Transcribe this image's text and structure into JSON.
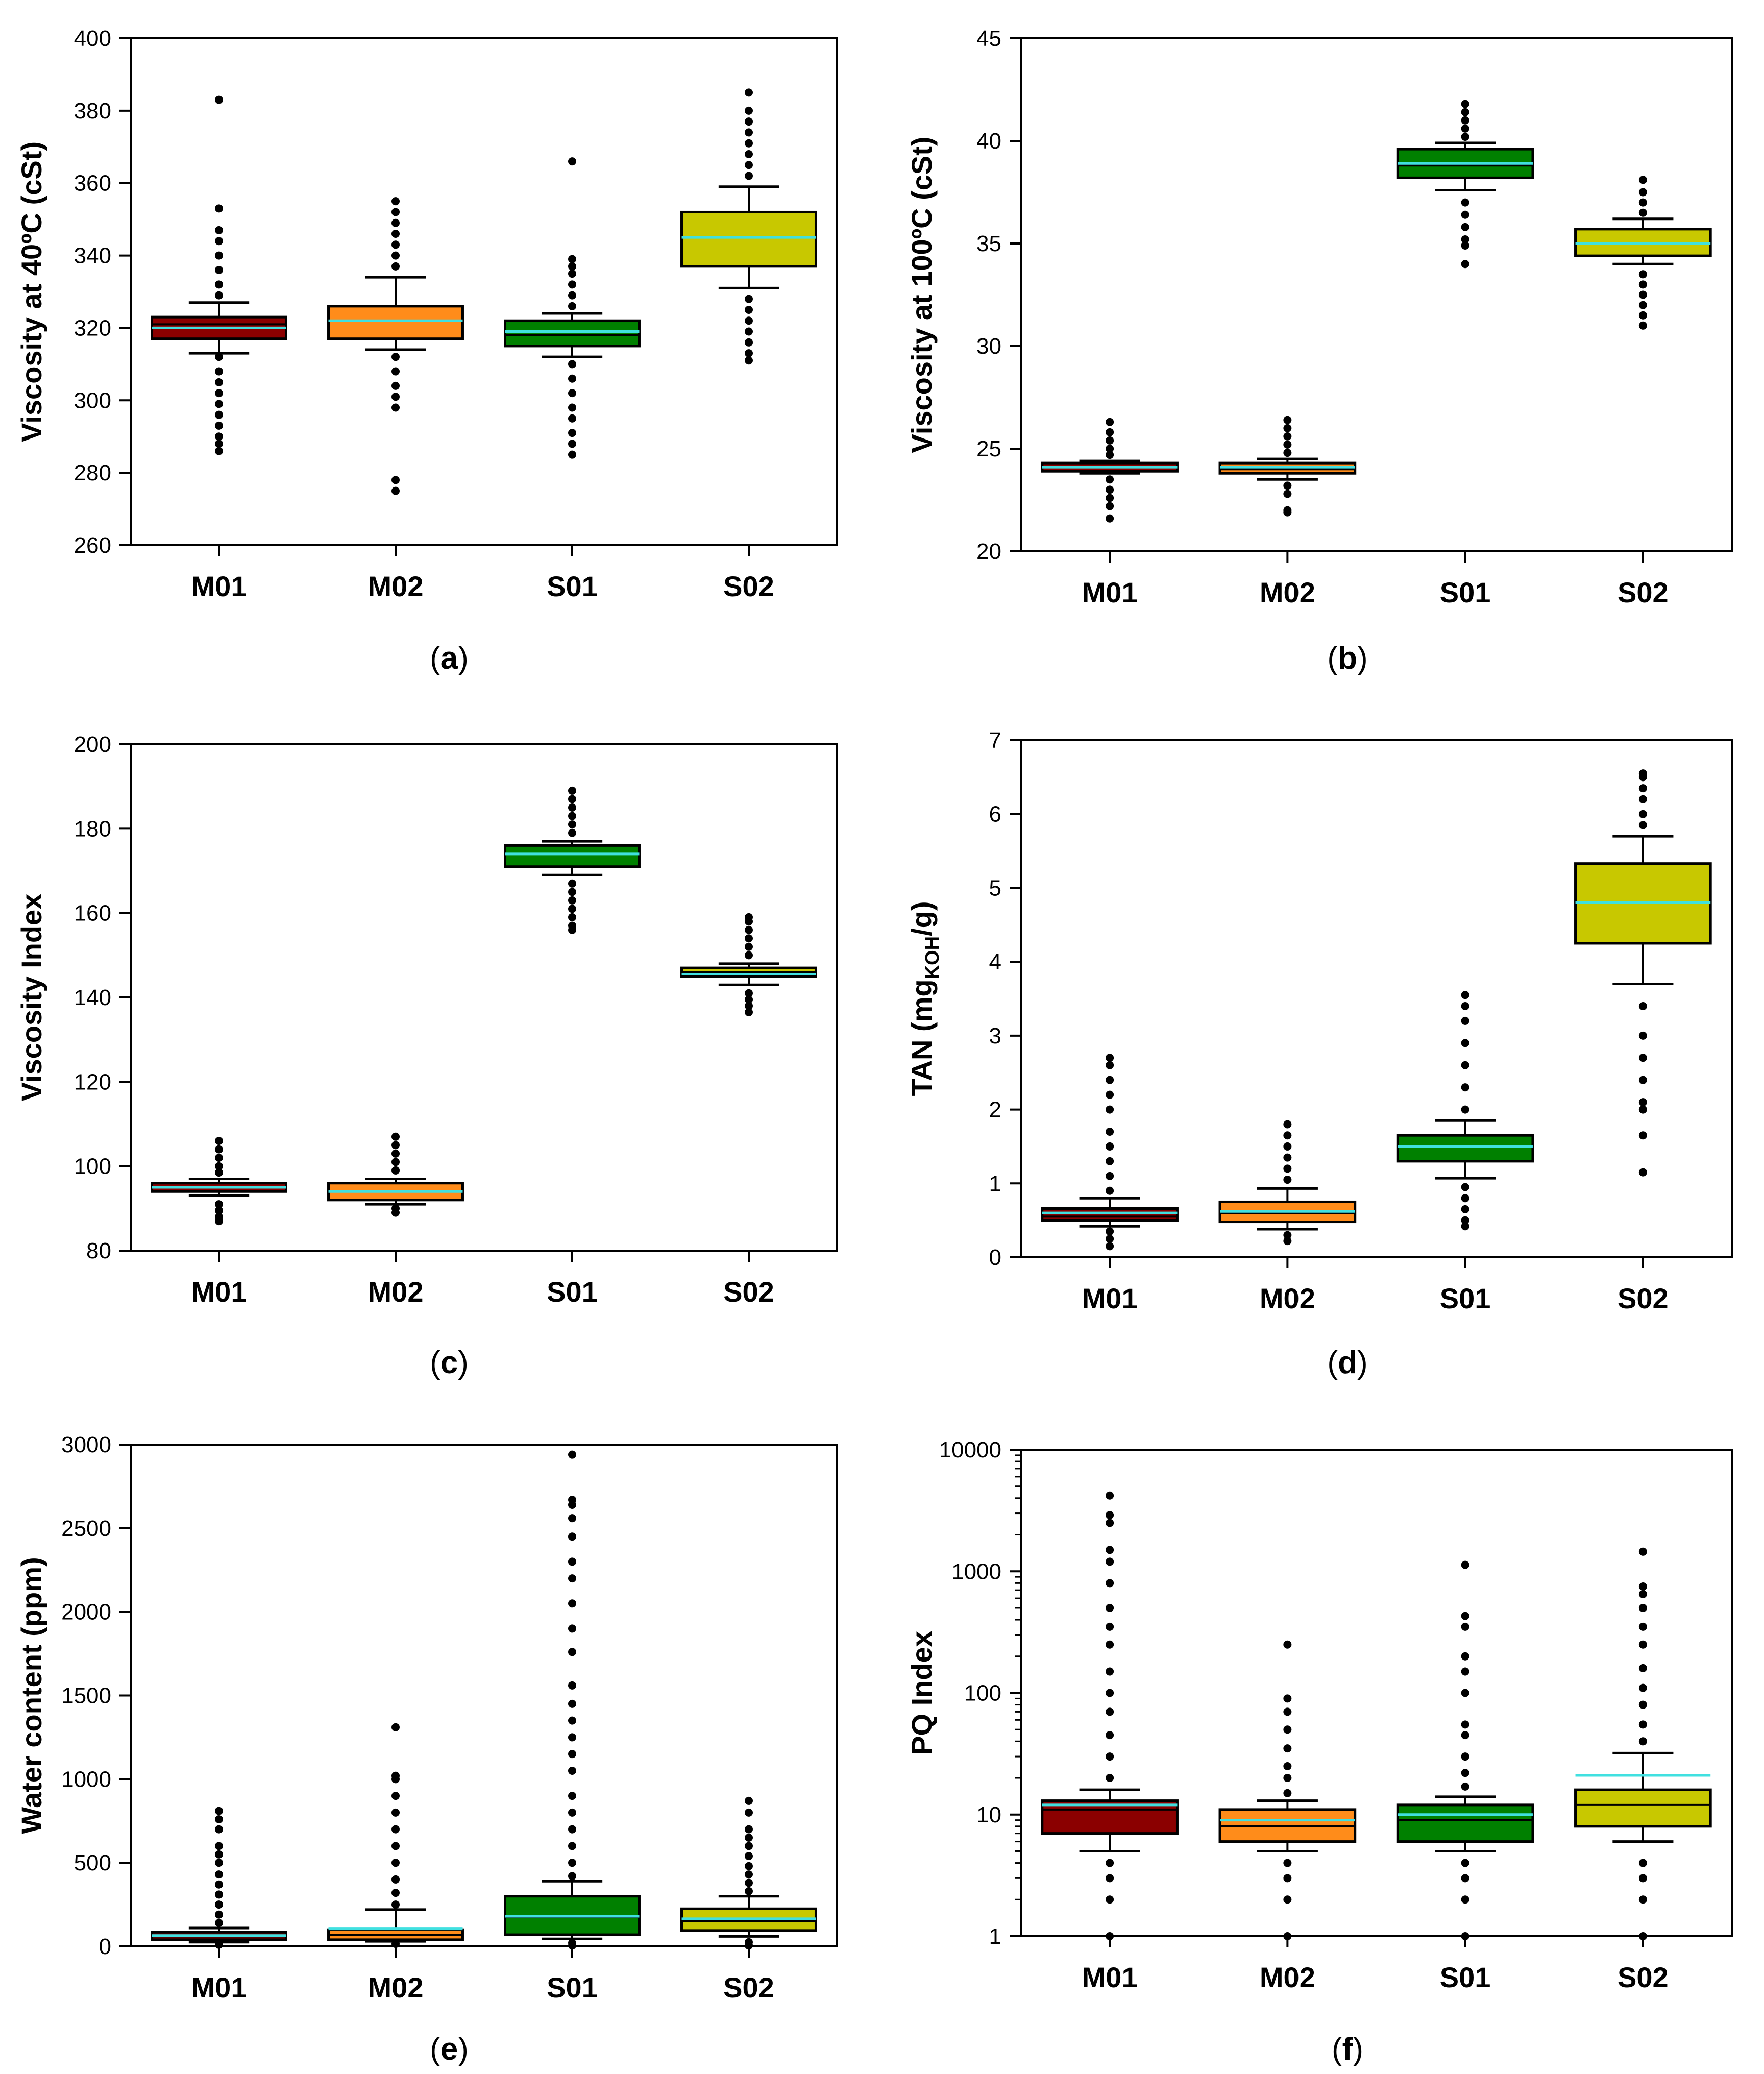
{
  "figure": {
    "colors": {
      "M01": "#8b0000",
      "M02": "#ff8c1a",
      "S01": "#008000",
      "S02": "#c8c800",
      "mean_line": "#40e0e0",
      "outlier": "#000000"
    }
  },
  "chart_data": [
    {
      "panel": "(a)",
      "letter": "a",
      "type": "box",
      "ylabel": "Viscosity at 40ºC (cSt)",
      "ylim": [
        260,
        400
      ],
      "yticks": [
        260,
        280,
        300,
        320,
        340,
        360,
        380,
        400
      ],
      "yscale": "linear",
      "categories": [
        "M01",
        "M02",
        "S01",
        "S02"
      ],
      "boxes": [
        {
          "name": "M01",
          "q1": 317,
          "median": 321,
          "q3": 323,
          "mean": 320,
          "whisker_low": 313,
          "whisker_high": 327,
          "outliers_low": [
            312,
            308,
            305,
            302,
            299,
            296,
            293,
            290,
            288,
            286
          ],
          "outliers_high": [
            329,
            332,
            336,
            340,
            344,
            347,
            353,
            383
          ]
        },
        {
          "name": "M02",
          "q1": 317,
          "median": 322,
          "q3": 326,
          "mean": 322,
          "whisker_low": 314,
          "whisker_high": 334,
          "outliers_low": [
            312,
            308,
            304,
            301,
            298,
            278,
            275
          ],
          "outliers_high": [
            337,
            340,
            343,
            346,
            349,
            352,
            355
          ]
        },
        {
          "name": "S01",
          "q1": 315,
          "median": 318,
          "q3": 322,
          "mean": 319,
          "whisker_low": 312,
          "whisker_high": 324,
          "outliers_low": [
            310,
            306,
            302,
            298,
            295,
            291,
            288,
            285
          ],
          "outliers_high": [
            326,
            329,
            332,
            335,
            337,
            339,
            366
          ]
        },
        {
          "name": "S02",
          "q1": 337,
          "median": 345,
          "q3": 352,
          "mean": 345,
          "whisker_low": 331,
          "whisker_high": 359,
          "outliers_low": [
            328,
            325,
            322,
            319,
            316,
            313,
            311
          ],
          "outliers_high": [
            362,
            365,
            368,
            371,
            374,
            377,
            380,
            385
          ]
        }
      ]
    },
    {
      "panel": "(b)",
      "letter": "b",
      "type": "box",
      "ylabel": "Viscosity at 100ºC (cSt)",
      "ylim": [
        20,
        45
      ],
      "yticks": [
        20,
        25,
        30,
        35,
        40,
        45
      ],
      "yscale": "linear",
      "categories": [
        "M01",
        "M02",
        "S01",
        "S02"
      ],
      "boxes": [
        {
          "name": "M01",
          "q1": 23.9,
          "median": 24.1,
          "q3": 24.3,
          "mean": 24.1,
          "whisker_low": 23.8,
          "whisker_high": 24.4,
          "outliers_low": [
            23.5,
            23.0,
            22.6,
            22.2,
            21.6
          ],
          "outliers_high": [
            24.7,
            25.0,
            25.4,
            25.8,
            26.3
          ]
        },
        {
          "name": "M02",
          "q1": 23.8,
          "median": 24.0,
          "q3": 24.3,
          "mean": 24.1,
          "whisker_low": 23.5,
          "whisker_high": 24.5,
          "outliers_low": [
            23.2,
            22.8,
            22.0,
            21.9
          ],
          "outliers_high": [
            24.8,
            25.2,
            25.6,
            26.0,
            26.4
          ]
        },
        {
          "name": "S01",
          "q1": 38.2,
          "median": 38.8,
          "q3": 39.6,
          "mean": 38.9,
          "whisker_low": 37.6,
          "whisker_high": 39.9,
          "outliers_low": [
            37.0,
            36.4,
            35.8,
            35.2,
            34.9,
            34.0
          ],
          "outliers_high": [
            40.2,
            40.6,
            41.0,
            41.4,
            41.8
          ]
        },
        {
          "name": "S02",
          "q1": 34.4,
          "median": 35.0,
          "q3": 35.7,
          "mean": 35.0,
          "whisker_low": 34.0,
          "whisker_high": 36.2,
          "outliers_low": [
            33.5,
            33.0,
            32.5,
            32.0,
            31.5,
            31.0
          ],
          "outliers_high": [
            36.5,
            37.0,
            37.5,
            38.1
          ]
        }
      ]
    },
    {
      "panel": "(c)",
      "letter": "c",
      "type": "box",
      "ylabel": "Viscosity Index",
      "ylim": [
        80,
        200
      ],
      "yticks": [
        80,
        100,
        120,
        140,
        160,
        180,
        200
      ],
      "yscale": "linear",
      "categories": [
        "M01",
        "M02",
        "S01",
        "S02"
      ],
      "boxes": [
        {
          "name": "M01",
          "q1": 94,
          "median": 95,
          "q3": 96,
          "mean": 95,
          "whisker_low": 93,
          "whisker_high": 97,
          "outliers_low": [
            91,
            89.5,
            88,
            87
          ],
          "outliers_high": [
            98.5,
            100,
            102,
            104,
            106
          ]
        },
        {
          "name": "M02",
          "q1": 92,
          "median": 94,
          "q3": 96,
          "mean": 94,
          "whisker_low": 91,
          "whisker_high": 97,
          "outliers_low": [
            90,
            89
          ],
          "outliers_high": [
            99,
            101,
            103,
            105,
            107
          ]
        },
        {
          "name": "S01",
          "q1": 171,
          "median": 174,
          "q3": 176,
          "mean": 174,
          "whisker_low": 169,
          "whisker_high": 177,
          "outliers_low": [
            167,
            165,
            163,
            161,
            159,
            157,
            156
          ],
          "outliers_high": [
            179,
            181,
            183,
            185,
            187,
            189
          ]
        },
        {
          "name": "S02",
          "q1": 145,
          "median": 146,
          "q3": 147,
          "mean": 145.5,
          "whisker_low": 143,
          "whisker_high": 148,
          "outliers_low": [
            141,
            139.5,
            138,
            136.5
          ],
          "outliers_high": [
            150,
            152,
            154,
            156,
            158,
            159
          ]
        }
      ]
    },
    {
      "panel": "(d)",
      "letter": "d",
      "type": "box",
      "ylabel": "TAN (mg",
      "ylabel_sub": "KOH",
      "ylabel_suffix": "/g)",
      "ylim": [
        0,
        7
      ],
      "yticks": [
        0,
        1,
        2,
        3,
        4,
        5,
        6,
        7
      ],
      "yscale": "linear",
      "categories": [
        "M01",
        "M02",
        "S01",
        "S02"
      ],
      "boxes": [
        {
          "name": "M01",
          "q1": 0.5,
          "median": 0.55,
          "q3": 0.66,
          "mean": 0.6,
          "whisker_low": 0.42,
          "whisker_high": 0.8,
          "outliers_low": [
            0.35,
            0.25,
            0.15
          ],
          "outliers_high": [
            0.9,
            1.1,
            1.3,
            1.5,
            1.7,
            2.0,
            2.2,
            2.4,
            2.6,
            2.7
          ]
        },
        {
          "name": "M02",
          "q1": 0.48,
          "median": 0.6,
          "q3": 0.75,
          "mean": 0.62,
          "whisker_low": 0.38,
          "whisker_high": 0.93,
          "outliers_low": [
            0.3,
            0.22
          ],
          "outliers_high": [
            1.05,
            1.2,
            1.35,
            1.5,
            1.65,
            1.8
          ]
        },
        {
          "name": "S01",
          "q1": 1.3,
          "median": 1.5,
          "q3": 1.65,
          "mean": 1.5,
          "whisker_low": 1.07,
          "whisker_high": 1.85,
          "outliers_low": [
            0.95,
            0.8,
            0.65,
            0.5,
            0.42
          ],
          "outliers_high": [
            2.0,
            2.3,
            2.6,
            2.9,
            3.2,
            3.4,
            3.55
          ]
        },
        {
          "name": "S02",
          "q1": 4.25,
          "median": 4.8,
          "q3": 5.33,
          "mean": 4.8,
          "whisker_low": 3.7,
          "whisker_high": 5.7,
          "outliers_low": [
            3.4,
            3.0,
            2.7,
            2.4,
            2.1,
            2.0,
            1.65,
            1.15
          ],
          "outliers_high": [
            5.85,
            6.0,
            6.2,
            6.35,
            6.5,
            6.55
          ]
        }
      ]
    },
    {
      "panel": "(e)",
      "letter": "e",
      "type": "box",
      "ylabel": "Water content (ppm)",
      "ylim": [
        0,
        3000
      ],
      "yticks": [
        0,
        500,
        1000,
        1500,
        2000,
        2500,
        3000
      ],
      "yscale": "linear",
      "categories": [
        "M01",
        "M02",
        "S01",
        "S02"
      ],
      "boxes": [
        {
          "name": "M01",
          "q1": 40,
          "median": 60,
          "q3": 85,
          "mean": 65,
          "whisker_low": 25,
          "whisker_high": 110,
          "outliers_low": [
            10
          ],
          "outliers_high": [
            140,
            190,
            250,
            310,
            370,
            430,
            500,
            550,
            600,
            700,
            760,
            810
          ]
        },
        {
          "name": "M02",
          "q1": 40,
          "median": 70,
          "q3": 100,
          "mean": 105,
          "whisker_low": 30,
          "whisker_high": 220,
          "outliers_low": [
            15
          ],
          "outliers_high": [
            250,
            320,
            400,
            500,
            600,
            700,
            800,
            900,
            1000,
            1020,
            1310
          ]
        },
        {
          "name": "S01",
          "q1": 70,
          "median": 175,
          "q3": 300,
          "mean": 180,
          "whisker_low": 45,
          "whisker_high": 390,
          "outliers_low": [
            20,
            5
          ],
          "outliers_high": [
            420,
            500,
            600,
            700,
            800,
            900,
            1050,
            1150,
            1250,
            1350,
            1450,
            1560,
            1760,
            1900,
            2050,
            2200,
            2300,
            2450,
            2560,
            2640,
            2670,
            2940
          ]
        },
        {
          "name": "S02",
          "q1": 95,
          "median": 150,
          "q3": 225,
          "mean": 165,
          "whisker_low": 60,
          "whisker_high": 300,
          "outliers_low": [
            25,
            5
          ],
          "outliers_high": [
            330,
            380,
            430,
            480,
            540,
            600,
            650,
            700,
            800,
            870
          ]
        }
      ]
    },
    {
      "panel": "(f)",
      "letter": "f",
      "type": "box",
      "ylabel": "PQ Index",
      "ylim": [
        1,
        10000
      ],
      "yticks": [
        1,
        10,
        100,
        1000,
        10000
      ],
      "yscale": "log",
      "categories": [
        "M01",
        "M02",
        "S01",
        "S02"
      ],
      "boxes": [
        {
          "name": "M01",
          "q1": 7,
          "median": 11,
          "q3": 13,
          "mean": 12,
          "whisker_low": 5,
          "whisker_high": 16,
          "outliers_low": [
            4,
            3,
            2,
            1
          ],
          "outliers_high": [
            20,
            30,
            45,
            70,
            100,
            150,
            250,
            350,
            500,
            800,
            1200,
            1500,
            2500,
            2900,
            4200
          ]
        },
        {
          "name": "M02",
          "q1": 6,
          "median": 8,
          "q3": 11,
          "mean": 9,
          "whisker_low": 5,
          "whisker_high": 13,
          "outliers_low": [
            4,
            3,
            2,
            1
          ],
          "outliers_high": [
            15,
            20,
            25,
            35,
            50,
            70,
            90,
            250
          ]
        },
        {
          "name": "S01",
          "q1": 6,
          "median": 9,
          "q3": 12,
          "mean": 10,
          "whisker_low": 5,
          "whisker_high": 14,
          "outliers_low": [
            4,
            3,
            2,
            1
          ],
          "outliers_high": [
            17,
            22,
            30,
            45,
            55,
            100,
            150,
            200,
            350,
            430,
            1130
          ]
        },
        {
          "name": "S02",
          "q1": 8,
          "median": 12,
          "q3": 16,
          "mean": 21,
          "whisker_low": 6,
          "whisker_high": 32,
          "outliers_low": [
            4,
            3,
            2,
            1
          ],
          "outliers_high": [
            40,
            55,
            80,
            110,
            160,
            250,
            350,
            500,
            650,
            750,
            1450
          ]
        }
      ]
    }
  ]
}
